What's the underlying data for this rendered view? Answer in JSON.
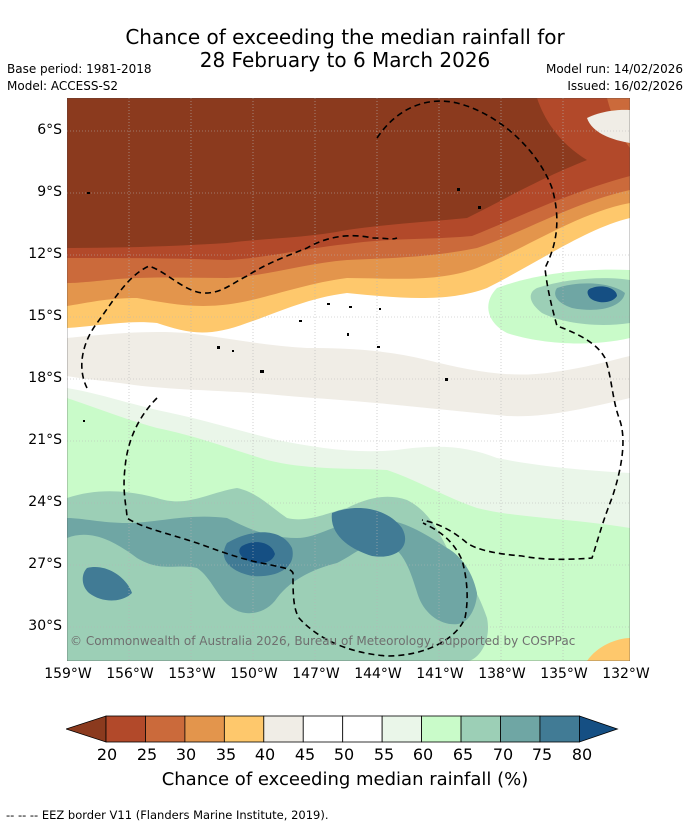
{
  "header": {
    "title_line1": "Chance of exceeding the median rainfall for",
    "title_line2": "28 February to 6 March 2026",
    "base_period": "Base period: 1981-2018",
    "model": "Model: ACCESS-S2",
    "model_run": "Model run: 14/02/2026",
    "issued": "Issued: 16/02/2026"
  },
  "map": {
    "lat_labels": [
      "6°S",
      "9°S",
      "12°S",
      "15°S",
      "18°S",
      "21°S",
      "24°S",
      "27°S",
      "30°S"
    ],
    "lon_labels": [
      "159°W",
      "156°W",
      "153°W",
      "150°W",
      "147°W",
      "144°W",
      "141°W",
      "138°W",
      "135°W",
      "132°W"
    ],
    "copyright": "© Commonwealth of Australia 2026, Bureau of Meteorology, supported by COSPPac"
  },
  "legend": {
    "title": "Chance of exceeding median rainfall (%)",
    "ticks": [
      "20",
      "25",
      "30",
      "35",
      "40",
      "45",
      "50",
      "55",
      "60",
      "65",
      "70",
      "75",
      "80"
    ],
    "colors": [
      "#8b3a1e",
      "#b2492a",
      "#cb6a3b",
      "#e3954c",
      "#fec86c",
      "#f0ede6",
      "#ffffff",
      "#ffffff",
      "#eaf6e9",
      "#c9fbc9",
      "#9ccfb6",
      "#6fa6a4",
      "#417b95",
      "#154f83"
    ]
  },
  "footer": {
    "eez_note": "-- -- -- EEZ border V11 (Flanders Marine Institute, 2019)."
  }
}
